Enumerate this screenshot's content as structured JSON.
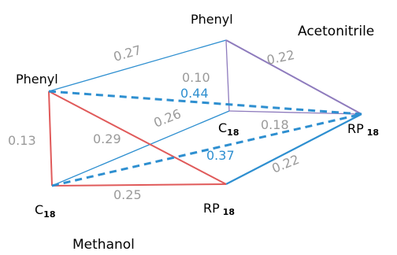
{
  "colors": {
    "red": "#e05a5a",
    "blue": "#2e8fd0",
    "purple": "#8e7bbd",
    "gray_text": "#9a9a9a"
  },
  "groups": {
    "acetonitrile": "Acetonitrile",
    "methanol": "Methanol"
  },
  "nodes": {
    "phenyl_top": "Phenyl",
    "phenyl_left": "Phenyl",
    "c18_mid_main": "C",
    "c18_mid_sub": "18",
    "c18_left_main": "C",
    "c18_left_sub": "18",
    "rp18_mid_main": "RP",
    "rp18_mid_sub": "18",
    "rp18_right_main": "RP",
    "rp18_right_sub": "18"
  },
  "edges": [
    {
      "from": "Phenyl (Methanol)",
      "to": "Phenyl (Acetonitrile)",
      "value": "0.27",
      "color": "blue",
      "style": "solid"
    },
    {
      "from": "Phenyl (Acetonitrile)",
      "to": "RP18 (Acetonitrile)",
      "value": "0.22",
      "color": "purple",
      "style": "solid"
    },
    {
      "from": "Phenyl (Acetonitrile)",
      "to": "C18 (Acetonitrile)",
      "value": "0.10",
      "color": "purple",
      "style": "solid"
    },
    {
      "from": "C18 (Acetonitrile)",
      "to": "RP18 (Acetonitrile)",
      "value": "0.18",
      "color": "purple",
      "style": "solid"
    },
    {
      "from": "Phenyl (Methanol)",
      "to": "RP18 (Acetonitrile)",
      "value": "0.44",
      "color": "blue",
      "style": "dashed"
    },
    {
      "from": "C18 (Methanol)",
      "to": "C18 (Acetonitrile)",
      "value": "0.26",
      "color": "blue",
      "style": "solid"
    },
    {
      "from": "Phenyl (Methanol)",
      "to": "C18 (Methanol)",
      "value": "0.13",
      "color": "red",
      "style": "solid"
    },
    {
      "from": "Phenyl (Methanol)",
      "to": "RP18 (Methanol)",
      "value": "0.29",
      "color": "red",
      "style": "solid"
    },
    {
      "from": "C18 (Methanol)",
      "to": "RP18 (Methanol)",
      "value": "0.25",
      "color": "red",
      "style": "solid"
    },
    {
      "from": "C18 (Methanol)",
      "to": "RP18 (Acetonitrile)",
      "value": "0.37",
      "color": "blue",
      "style": "dashed"
    },
    {
      "from": "RP18 (Methanol)",
      "to": "RP18 (Acetonitrile)",
      "value": "0.22",
      "color": "blue",
      "style": "solid"
    }
  ]
}
